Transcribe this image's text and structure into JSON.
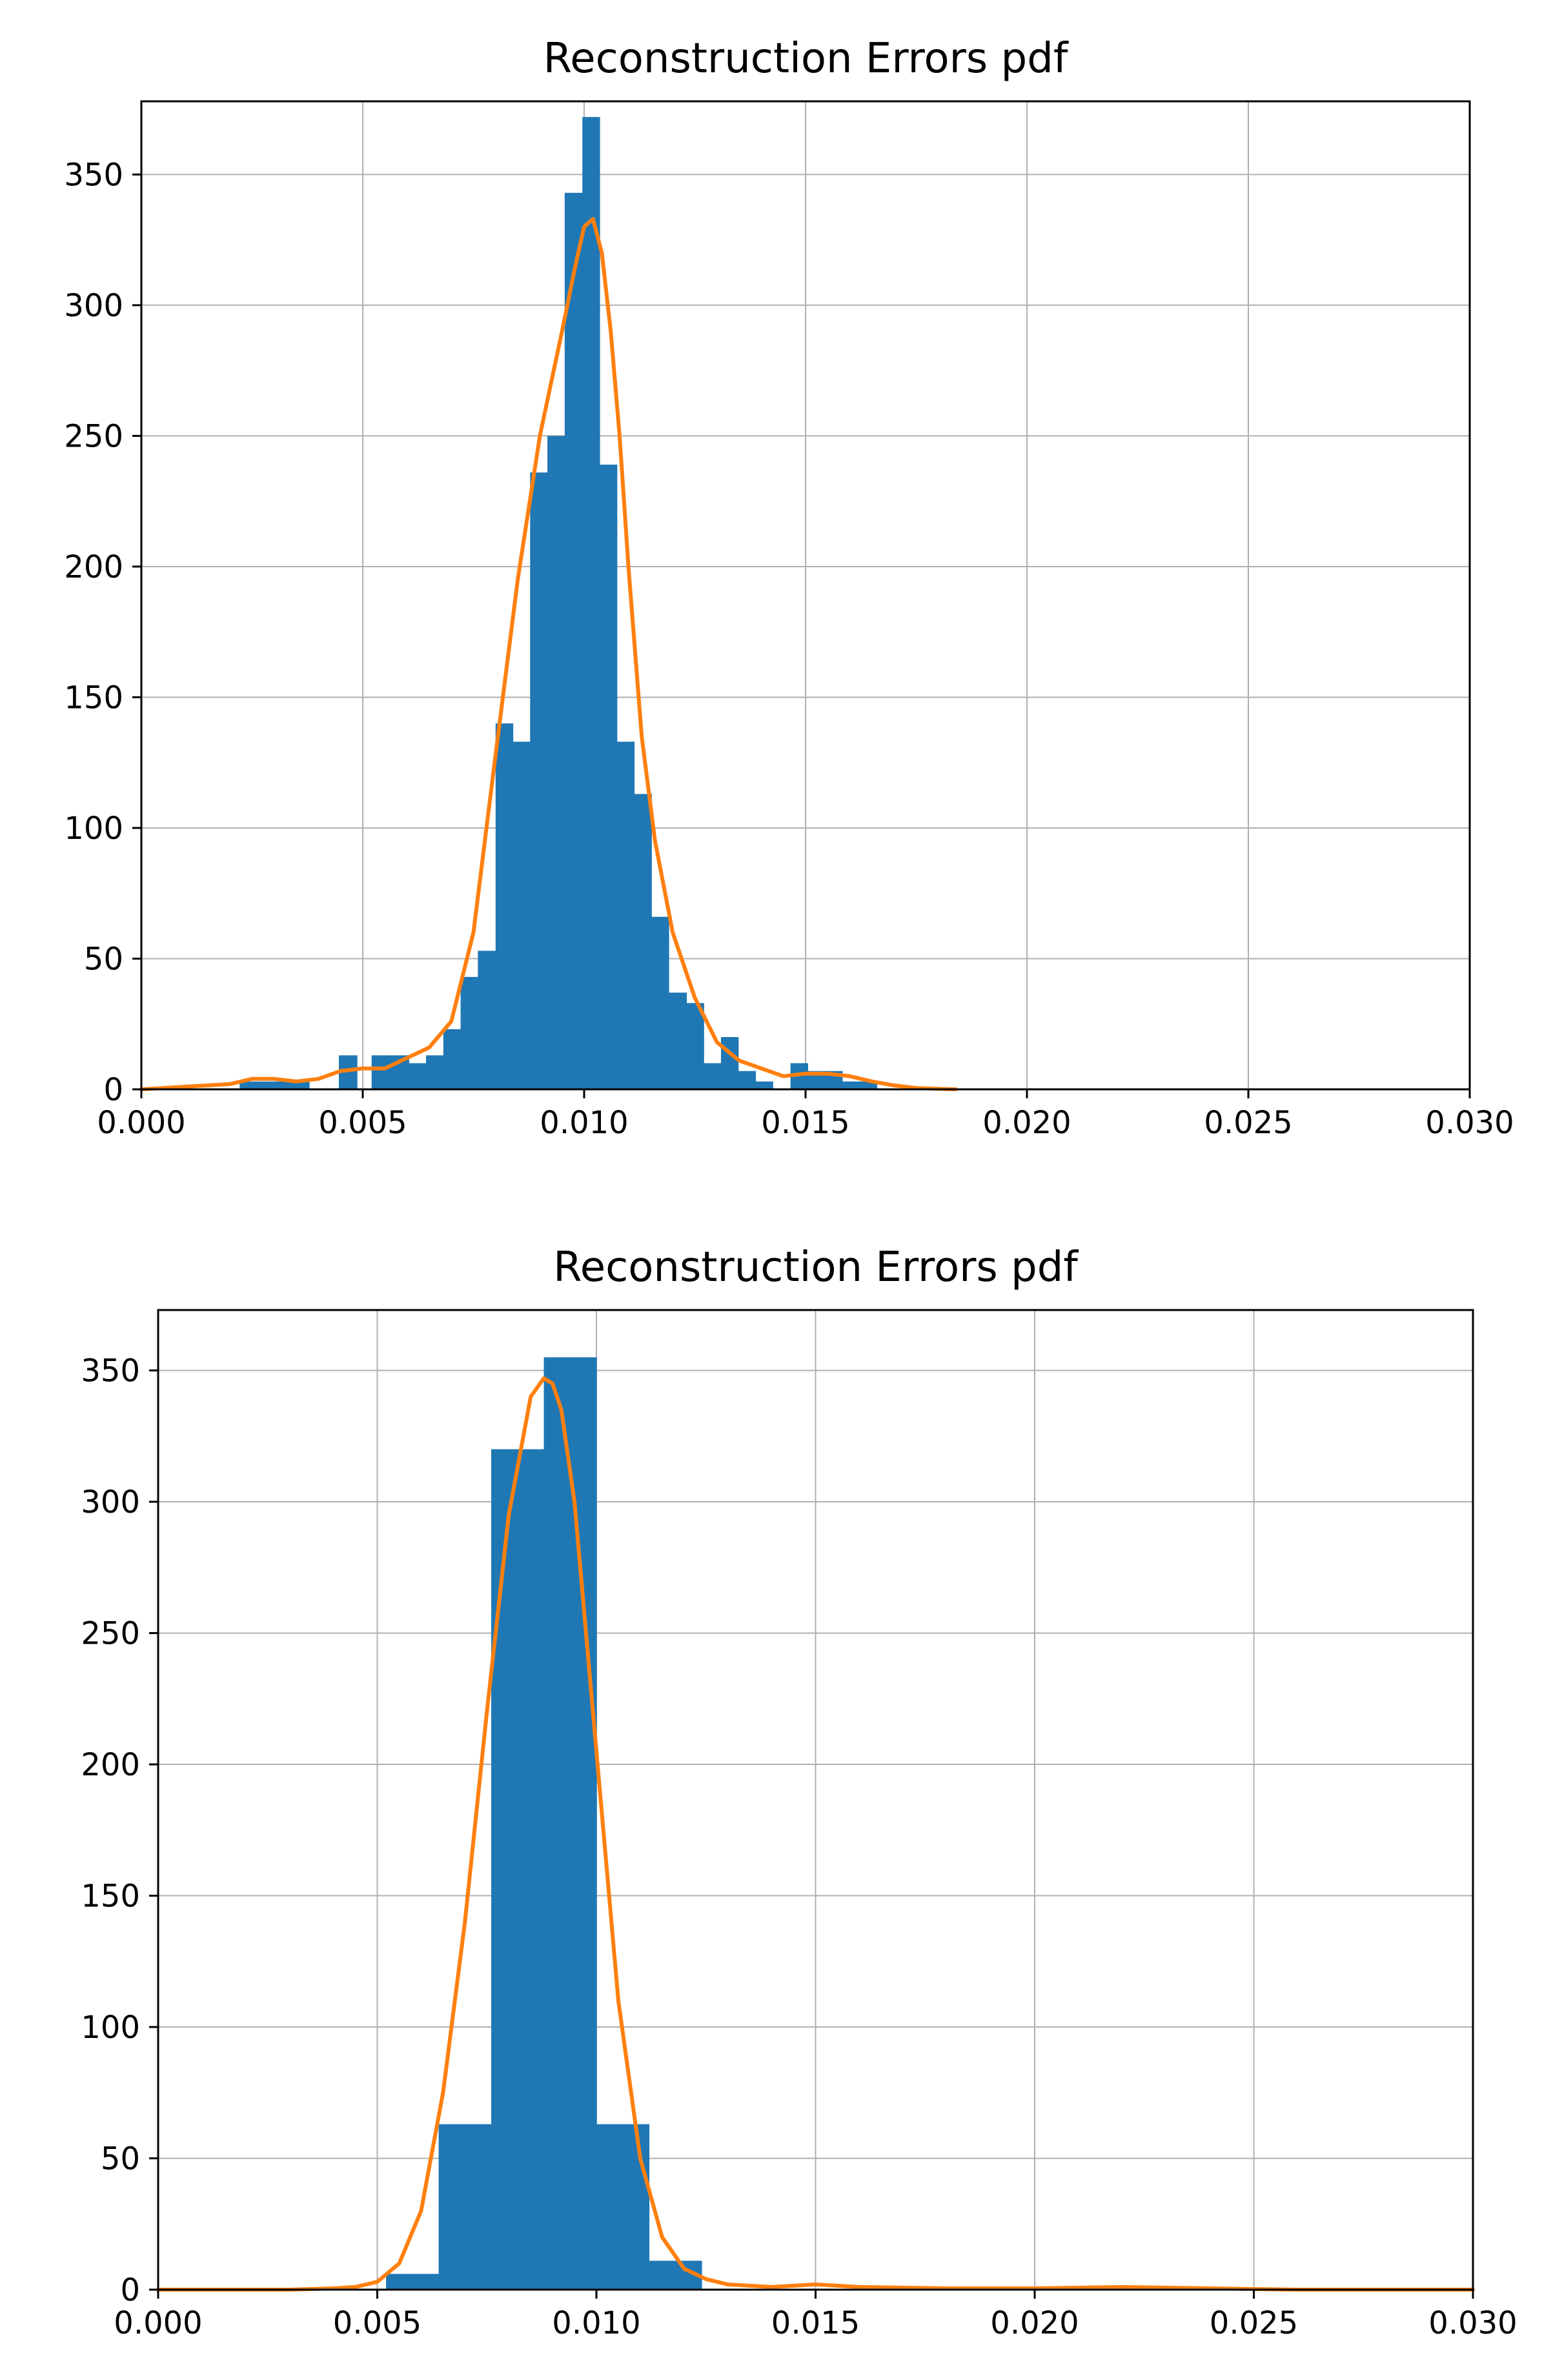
{
  "colors": {
    "bar": "#1f77b4",
    "kde": "#ff7f0e",
    "grid": "#b0b0b0",
    "axes": "#000000"
  },
  "chart_data": [
    {
      "type": "bar",
      "subtype": "histogram-with-kde",
      "title": "Reconstruction Errors pdf",
      "xlabel": "",
      "ylabel": "",
      "xlim": [
        0,
        0.03
      ],
      "ylim": [
        0,
        378
      ],
      "grid": true,
      "xticks": [
        0,
        0.005,
        0.01,
        0.015,
        0.02,
        0.025,
        0.03
      ],
      "xtick_labels": [
        "0.000",
        "0.005",
        "0.010",
        "0.015",
        "0.020",
        "0.025",
        "0.030"
      ],
      "yticks": [
        0,
        50,
        100,
        150,
        200,
        250,
        300,
        350
      ],
      "ytick_labels": [
        "0",
        "50",
        "100",
        "150",
        "200",
        "250",
        "300",
        "350"
      ],
      "bars": [
        {
          "x0": 0.00222,
          "x1": 0.00261,
          "value": 3
        },
        {
          "x0": 0.00261,
          "x1": 0.00301,
          "value": 3
        },
        {
          "x0": 0.00301,
          "x1": 0.0034,
          "value": 3
        },
        {
          "x0": 0.0034,
          "x1": 0.00379,
          "value": 3
        },
        {
          "x0": 0.00446,
          "x1": 0.00487,
          "value": 13
        },
        {
          "x0": 0.0052,
          "x1": 0.00565,
          "value": 13
        },
        {
          "x0": 0.00565,
          "x1": 0.00604,
          "value": 13
        },
        {
          "x0": 0.00604,
          "x1": 0.00643,
          "value": 10
        },
        {
          "x0": 0.00643,
          "x1": 0.00682,
          "value": 13
        },
        {
          "x0": 0.00682,
          "x1": 0.00721,
          "value": 23
        },
        {
          "x0": 0.00721,
          "x1": 0.0076,
          "value": 43
        },
        {
          "x0": 0.0076,
          "x1": 0.008,
          "value": 53
        },
        {
          "x0": 0.008,
          "x1": 0.00839,
          "value": 140
        },
        {
          "x0": 0.00839,
          "x1": 0.00878,
          "value": 133
        },
        {
          "x0": 0.00878,
          "x1": 0.00917,
          "value": 236
        },
        {
          "x0": 0.00917,
          "x1": 0.00956,
          "value": 250
        },
        {
          "x0": 0.00956,
          "x1": 0.00996,
          "value": 343
        },
        {
          "x0": 0.00996,
          "x1": 0.01035,
          "value": 372
        },
        {
          "x0": 0.01035,
          "x1": 0.01074,
          "value": 239
        },
        {
          "x0": 0.01074,
          "x1": 0.01113,
          "value": 133
        },
        {
          "x0": 0.01113,
          "x1": 0.01152,
          "value": 113
        },
        {
          "x0": 0.01152,
          "x1": 0.01191,
          "value": 66
        },
        {
          "x0": 0.01191,
          "x1": 0.01231,
          "value": 37
        },
        {
          "x0": 0.01231,
          "x1": 0.0127,
          "value": 33
        },
        {
          "x0": 0.0127,
          "x1": 0.01309,
          "value": 10
        },
        {
          "x0": 0.01309,
          "x1": 0.01348,
          "value": 20
        },
        {
          "x0": 0.01348,
          "x1": 0.01387,
          "value": 7
        },
        {
          "x0": 0.01387,
          "x1": 0.01426,
          "value": 3
        },
        {
          "x0": 0.01426,
          "x1": 0.01466,
          "value": 0
        },
        {
          "x0": 0.01466,
          "x1": 0.01505,
          "value": 10
        },
        {
          "x0": 0.01505,
          "x1": 0.01544,
          "value": 7
        },
        {
          "x0": 0.01544,
          "x1": 0.01583,
          "value": 7
        },
        {
          "x0": 0.01583,
          "x1": 0.01622,
          "value": 3
        },
        {
          "x0": 0.01622,
          "x1": 0.01661,
          "value": 3
        }
      ],
      "kde": {
        "x": [
          0,
          0.001,
          0.0015,
          0.002,
          0.0025,
          0.003,
          0.0035,
          0.004,
          0.0045,
          0.005,
          0.0055,
          0.006,
          0.0065,
          0.007,
          0.0075,
          0.008,
          0.0085,
          0.009,
          0.0095,
          0.0098,
          0.01,
          0.0102,
          0.0104,
          0.0106,
          0.0108,
          0.011,
          0.0113,
          0.0116,
          0.012,
          0.0125,
          0.013,
          0.0135,
          0.014,
          0.0145,
          0.015,
          0.0155,
          0.016,
          0.0165,
          0.017,
          0.0175,
          0.018,
          0.0184
        ],
        "y": [
          0,
          1,
          1.5,
          2,
          4,
          4,
          3,
          4,
          7,
          8,
          8,
          12,
          16,
          26,
          60,
          128,
          195,
          250,
          290,
          315,
          330,
          333,
          320,
          290,
          250,
          200,
          135,
          95,
          60,
          35,
          18,
          11,
          8,
          5,
          6,
          6,
          5,
          3,
          1.5,
          0.5,
          0.2,
          0
        ]
      }
    },
    {
      "type": "bar",
      "subtype": "histogram-with-kde",
      "title": "Reconstruction Errors pdf",
      "xlabel": "",
      "ylabel": "",
      "xlim": [
        0,
        0.03
      ],
      "ylim": [
        0,
        373
      ],
      "grid": true,
      "xticks": [
        0,
        0.005,
        0.01,
        0.015,
        0.02,
        0.025,
        0.03
      ],
      "xtick_labels": [
        "0.000",
        "0.005",
        "0.010",
        "0.015",
        "0.020",
        "0.025",
        "0.030"
      ],
      "yticks": [
        0,
        50,
        100,
        150,
        200,
        250,
        300,
        350
      ],
      "ytick_labels": [
        "0",
        "50",
        "100",
        "150",
        "200",
        "250",
        "300",
        "350"
      ],
      "bars": [
        {
          "x0": 0.0052,
          "x1": 0.0064,
          "value": 6
        },
        {
          "x0": 0.0064,
          "x1": 0.0076,
          "value": 63
        },
        {
          "x0": 0.0076,
          "x1": 0.0088,
          "value": 320
        },
        {
          "x0": 0.0088,
          "x1": 0.01,
          "value": 355
        },
        {
          "x0": 0.01,
          "x1": 0.0112,
          "value": 63
        },
        {
          "x0": 0.0112,
          "x1": 0.0124,
          "value": 11
        }
      ],
      "kde": {
        "x": [
          0,
          0.003,
          0.004,
          0.0045,
          0.005,
          0.0055,
          0.006,
          0.0065,
          0.007,
          0.0075,
          0.008,
          0.0085,
          0.0088,
          0.009,
          0.0092,
          0.0095,
          0.01,
          0.0105,
          0.011,
          0.0115,
          0.012,
          0.0125,
          0.013,
          0.014,
          0.015,
          0.016,
          0.018,
          0.02,
          0.022,
          0.024,
          0.026,
          0.03
        ],
        "y": [
          0,
          0,
          0.5,
          1,
          3,
          10,
          30,
          75,
          140,
          220,
          295,
          340,
          347,
          345,
          335,
          300,
          205,
          110,
          50,
          20,
          8,
          4,
          2,
          1,
          2,
          1,
          0.5,
          0.5,
          1,
          0.5,
          0,
          0
        ]
      }
    }
  ]
}
